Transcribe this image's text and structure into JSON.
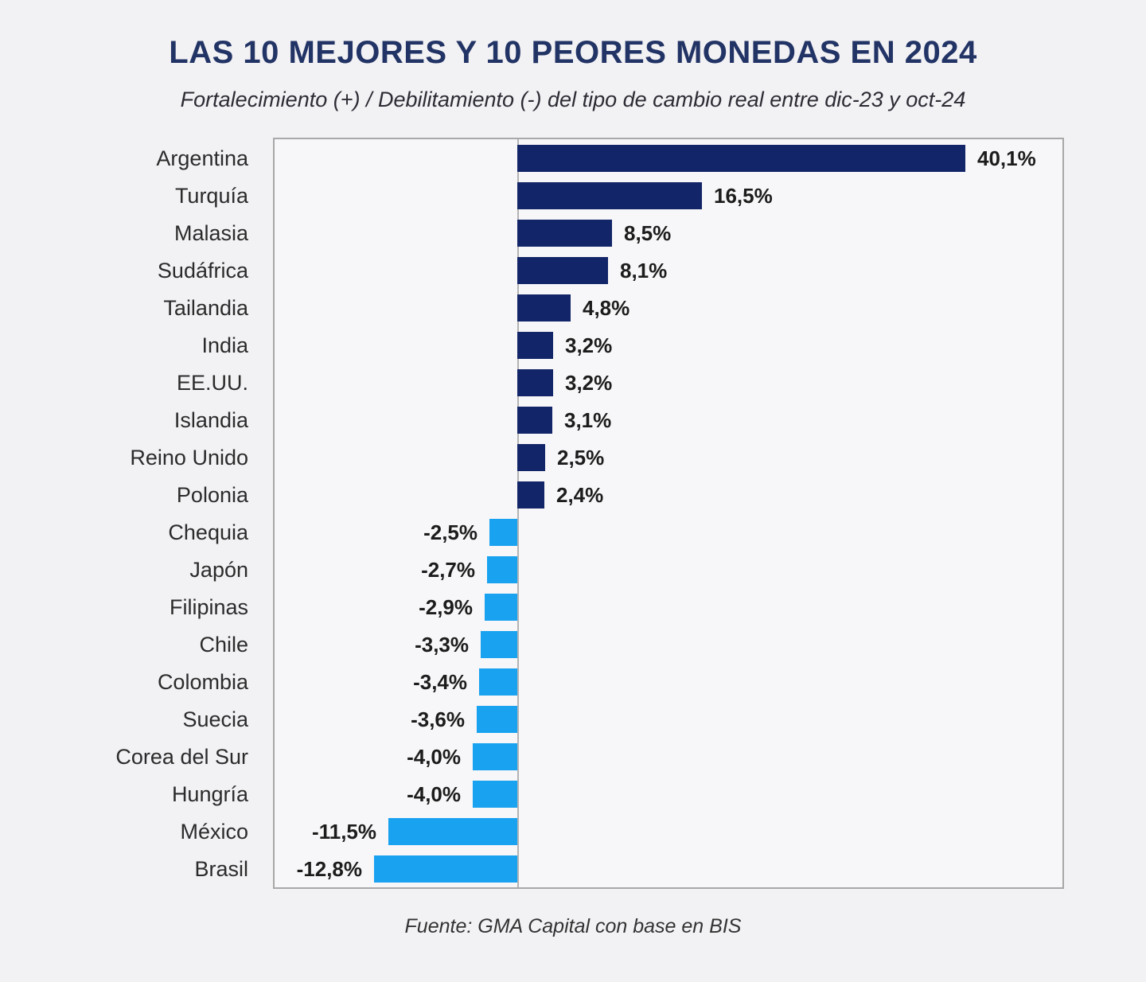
{
  "page": {
    "title": "LAS 10 MEJORES Y 10 PEORES MONEDAS EN 2024",
    "subtitle": "Fortalecimiento (+) / Debilitamiento (-) del tipo de cambio real entre dic-23 y oct-24",
    "source": "Fuente: GMA Capital con base en BIS"
  },
  "colors": {
    "background": "#f2f1f4",
    "plot_background": "#f7f6f8",
    "plot_border": "#a8a8a8",
    "zero_line": "#b4b4b4",
    "positive_bar": "#122568",
    "negative_bar": "#18a2f0",
    "title": "#223465",
    "subtitle": "#2c2c34",
    "text": "#2b2b2b",
    "value_text": "#1c1c1c"
  },
  "chart_data": {
    "type": "bar",
    "orientation": "horizontal",
    "title": "LAS 10 MEJORES Y 10 PEORES MONEDAS EN 2024",
    "subtitle": "Fortalecimiento (+) / Debilitamiento (-) del tipo de cambio real entre dic-23 y oct-24",
    "source": "Fuente: GMA Capital con base en BIS",
    "unit": "%",
    "value_format": "comma-decimal percent",
    "xlim": [
      -21.9,
      48.9
    ],
    "grid": false,
    "legend": false,
    "categories": [
      "Argentina",
      "Turquía",
      "Malasia",
      "Sudáfrica",
      "Tailandia",
      "India",
      "EE.UU.",
      "Islandia",
      "Reino Unido",
      "Polonia",
      "Chequia",
      "Japón",
      "Filipinas",
      "Chile",
      "Colombia",
      "Suecia",
      "Corea del Sur",
      "Hungría",
      "México",
      "Brasil"
    ],
    "values": [
      40.1,
      16.5,
      8.5,
      8.1,
      4.8,
      3.2,
      3.2,
      3.1,
      2.5,
      2.4,
      -2.5,
      -2.7,
      -2.9,
      -3.3,
      -3.4,
      -3.6,
      -4.0,
      -4.0,
      -11.5,
      -12.8
    ],
    "labels": [
      "40,1%",
      "16,5%",
      "8,5%",
      "8,1%",
      "4,8%",
      "3,2%",
      "3,2%",
      "3,1%",
      "2,5%",
      "2,4%",
      "-2,5%",
      "-2,7%",
      "-2,9%",
      "-3,3%",
      "-3,4%",
      "-3,6%",
      "-4,0%",
      "-4,0%",
      "-11,5%",
      "-12,8%"
    ]
  }
}
